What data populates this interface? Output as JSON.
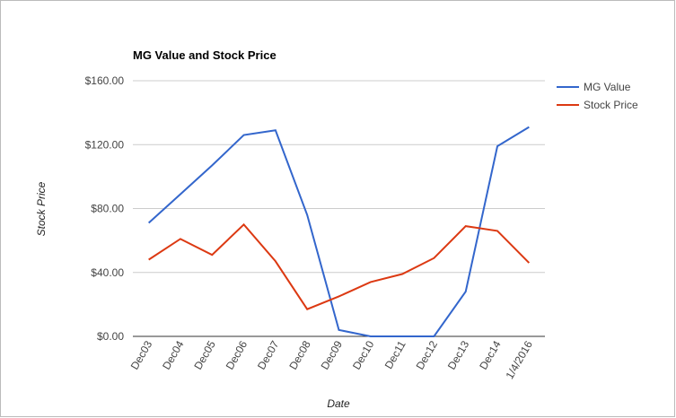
{
  "chart_data": {
    "type": "line",
    "title": "MG Value and Stock Price",
    "x_label": "Date",
    "y_label": "Stock Price",
    "categories": [
      "Dec03",
      "Dec04",
      "Dec05",
      "Dec06",
      "Dec07",
      "Dec08",
      "Dec09",
      "Dec10",
      "Dec11",
      "Dec12",
      "Dec13",
      "Dec14",
      "1/4/2016"
    ],
    "series": [
      {
        "name": "MG Value",
        "color": "#3366cc",
        "values": [
          71,
          89,
          107,
          126,
          129,
          76,
          4,
          0,
          0,
          0,
          28,
          119,
          131
        ]
      },
      {
        "name": "Stock Price",
        "color": "#dc3912",
        "values": [
          48,
          61,
          51,
          70,
          47,
          17,
          25,
          34,
          39,
          49,
          69,
          66,
          46
        ]
      }
    ],
    "ylim": [
      0,
      160
    ],
    "yticks": [
      {
        "value": 0,
        "label": "$0.00"
      },
      {
        "value": 40,
        "label": "$40.00"
      },
      {
        "value": 80,
        "label": "$80.00"
      },
      {
        "value": 120,
        "label": "$120.00"
      },
      {
        "value": 160,
        "label": "$160.00"
      }
    ],
    "grid": true,
    "legend": "right"
  }
}
